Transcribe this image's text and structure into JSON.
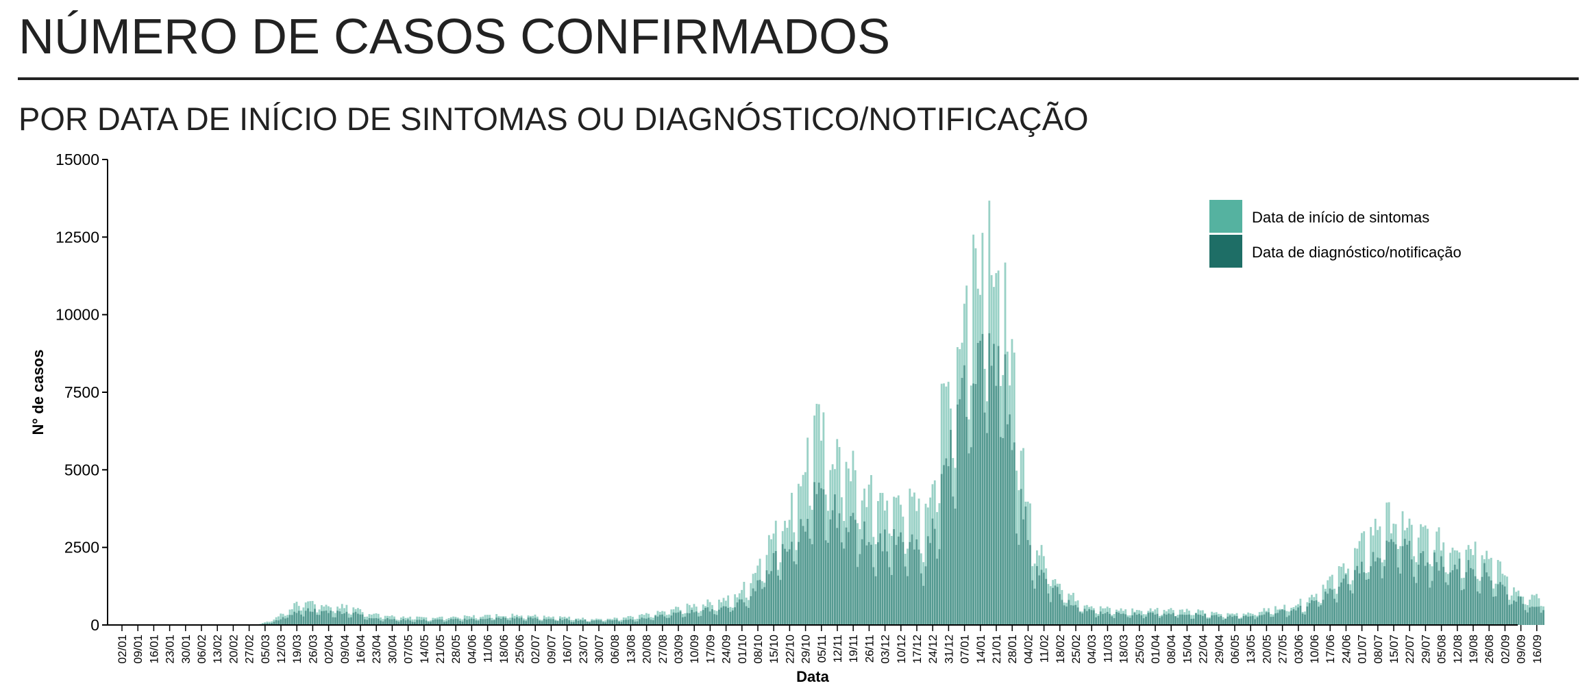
{
  "header": {
    "title": "NÚMERO DE CASOS CONFIRMADOS",
    "subtitle": "POR DATA DE INÍCIO DE SINTOMAS OU DIAGNÓSTICO/NOTIFICAÇÃO"
  },
  "colors": {
    "onset": "#55b2a0",
    "diagnosis": "#1e6e66",
    "text": "#222222"
  },
  "chart_data": {
    "type": "bar",
    "xlabel": "Data",
    "ylabel": "N° de casos",
    "ylim": [
      0,
      15000
    ],
    "yticks": [
      "0",
      "2500",
      "5000",
      "7500",
      "10000",
      "12500",
      "15000"
    ],
    "grid": false,
    "legend_position": "top-right",
    "categories": [
      "02/01",
      "09/01",
      "16/01",
      "23/01",
      "30/01",
      "06/02",
      "13/02",
      "20/02",
      "27/02",
      "05/03",
      "12/03",
      "19/03",
      "26/03",
      "02/04",
      "09/04",
      "16/04",
      "23/04",
      "30/04",
      "07/05",
      "14/05",
      "21/05",
      "28/05",
      "04/06",
      "11/06",
      "18/06",
      "25/06",
      "02/07",
      "09/07",
      "16/07",
      "23/07",
      "30/07",
      "06/08",
      "13/08",
      "20/08",
      "27/08",
      "03/09",
      "10/09",
      "17/09",
      "24/09",
      "01/10",
      "08/10",
      "15/10",
      "22/10",
      "29/10",
      "05/11",
      "12/11",
      "19/11",
      "26/11",
      "03/12",
      "10/12",
      "17/12",
      "24/12",
      "31/12",
      "07/01",
      "14/01",
      "21/01",
      "28/01",
      "04/02",
      "11/02",
      "18/02",
      "25/02",
      "04/03",
      "11/03",
      "18/03",
      "25/03",
      "01/04",
      "08/04",
      "15/04",
      "22/04",
      "29/04",
      "06/05",
      "13/05",
      "20/05",
      "27/05",
      "03/06",
      "10/06",
      "17/06",
      "24/06",
      "01/07",
      "08/07",
      "15/07",
      "22/07",
      "29/07",
      "05/08",
      "12/08",
      "19/08",
      "26/08",
      "02/09",
      "09/09",
      "16/09"
    ],
    "series": [
      {
        "name": "Data de início de sintomas",
        "type": "bar",
        "values": [
          0,
          0,
          0,
          0,
          0,
          0,
          0,
          0,
          0,
          5,
          200,
          550,
          800,
          650,
          620,
          550,
          400,
          300,
          260,
          240,
          240,
          260,
          280,
          300,
          320,
          330,
          320,
          290,
          260,
          220,
          200,
          200,
          230,
          300,
          380,
          500,
          600,
          700,
          780,
          900,
          1500,
          2600,
          3300,
          4500,
          6500,
          5700,
          5500,
          4300,
          4200,
          4100,
          3900,
          3500,
          6800,
          9000,
          12000,
          13200,
          10500,
          5500,
          2500,
          1700,
          1000,
          700,
          550,
          500,
          480,
          500,
          520,
          500,
          450,
          380,
          350,
          380,
          450,
          550,
          650,
          800,
          1300,
          1700,
          2300,
          3000,
          3500,
          3400,
          3000,
          2800,
          2600,
          2600,
          2500,
          1900,
          1200,
          900
        ]
      },
      {
        "name": "Data de diagnóstico/notificação",
        "type": "bar",
        "values": [
          0,
          0,
          0,
          0,
          0,
          0,
          0,
          0,
          0,
          0,
          100,
          350,
          500,
          450,
          420,
          400,
          250,
          200,
          170,
          160,
          160,
          170,
          190,
          210,
          220,
          230,
          220,
          200,
          180,
          160,
          150,
          150,
          170,
          200,
          260,
          350,
          420,
          480,
          550,
          650,
          1000,
          1800,
          2400,
          3000,
          4200,
          3700,
          3600,
          3000,
          2800,
          2700,
          2600,
          2200,
          4500,
          6500,
          8500,
          9800,
          8000,
          4000,
          1800,
          1200,
          750,
          500,
          400,
          370,
          350,
          380,
          390,
          380,
          340,
          290,
          270,
          290,
          350,
          420,
          480,
          600,
          950,
          1250,
          1700,
          2200,
          2600,
          2500,
          2200,
          2100,
          1900,
          1900,
          1800,
          1400,
          900,
          650
        ]
      }
    ]
  }
}
